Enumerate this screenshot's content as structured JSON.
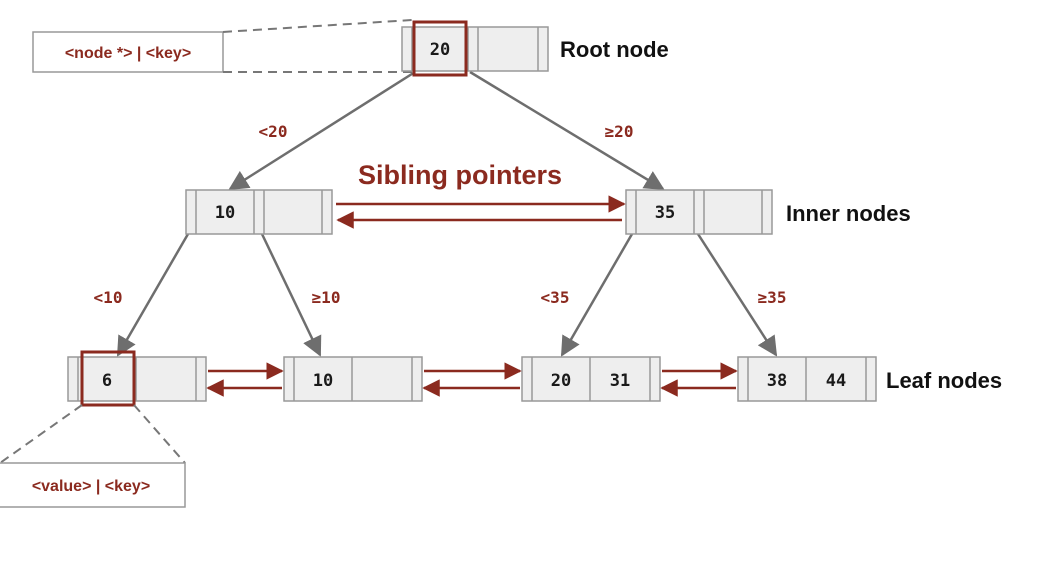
{
  "colors": {
    "accent": "#8b2a1f",
    "node_fill": "#eeeeee",
    "node_stroke": "#999999",
    "tree_edge": "#6e6e6e"
  },
  "labels": {
    "root": "Root node",
    "inner": "Inner nodes",
    "leaf": "Leaf nodes",
    "sibling": "Sibling pointers"
  },
  "callouts": {
    "root_format": "<node *> | <key>",
    "leaf_format": "<value> | <key>"
  },
  "nodes": {
    "root": {
      "keys": [
        "20",
        ""
      ]
    },
    "inner_left": {
      "keys": [
        "10",
        ""
      ]
    },
    "inner_right": {
      "keys": [
        "35",
        ""
      ]
    },
    "leaf_1": {
      "keys": [
        "6",
        ""
      ]
    },
    "leaf_2": {
      "keys": [
        "10",
        ""
      ]
    },
    "leaf_3": {
      "keys": [
        "20",
        "31"
      ]
    },
    "leaf_4": {
      "keys": [
        "38",
        "44"
      ]
    }
  },
  "edges": {
    "root_left": "<20",
    "root_right": "≥20",
    "inner_left_left": "<10",
    "inner_left_right": "≥10",
    "inner_right_left": "<35",
    "inner_right_right": "≥35"
  }
}
